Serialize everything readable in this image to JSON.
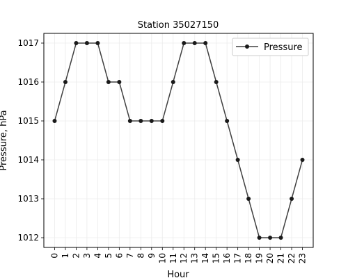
{
  "chart_data": {
    "type": "line",
    "title": "Station 35027150",
    "xlabel": "Hour",
    "ylabel": "Pressure, hPa",
    "x": [
      0,
      1,
      2,
      3,
      4,
      5,
      6,
      7,
      8,
      9,
      10,
      11,
      12,
      13,
      14,
      15,
      16,
      17,
      18,
      19,
      20,
      21,
      22,
      23
    ],
    "x_tick_labels": [
      "0",
      "1",
      "2",
      "3",
      "4",
      "5",
      "6",
      "7",
      "8",
      "9",
      "10",
      "11",
      "12",
      "13",
      "14",
      "15",
      "16",
      "17",
      "18",
      "19",
      "20",
      "21",
      "22",
      "23"
    ],
    "y_ticks": [
      1012,
      1013,
      1014,
      1015,
      1016,
      1017
    ],
    "y_tick_labels": [
      "1012",
      "1013",
      "1014",
      "1015",
      "1016",
      "1017"
    ],
    "xlim": [
      -1,
      24
    ],
    "ylim": [
      1011.75,
      1017.25
    ],
    "grid": true,
    "legend": "top-right",
    "series": [
      {
        "name": "Pressure",
        "color": "#1a1a1a",
        "marker": "circle",
        "values": [
          1015,
          1016,
          1017,
          1017,
          1017,
          1016,
          1016,
          1015,
          1015,
          1015,
          1015,
          1016,
          1017,
          1017,
          1017,
          1016,
          1015,
          1014,
          1013,
          1012,
          1012,
          1012,
          1013,
          1014
        ]
      }
    ]
  }
}
